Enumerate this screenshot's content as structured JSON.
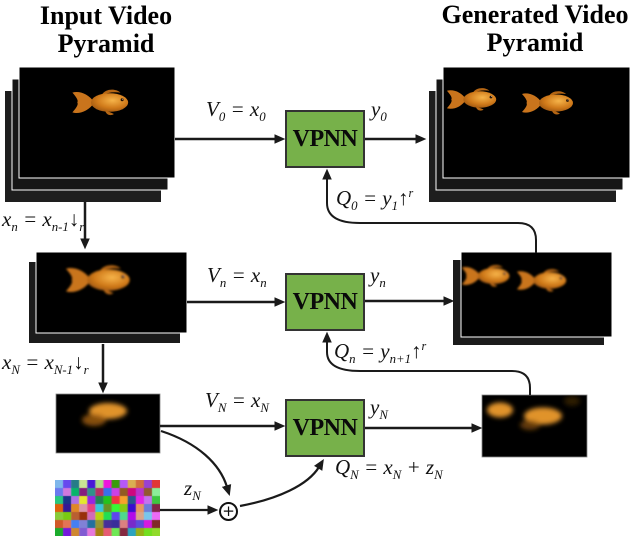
{
  "diagram": {
    "left_title": "Input Video Pyramid",
    "right_title": "Generated Video Pyramid",
    "vpnn_label": "VPNN",
    "plus_symbol": "+",
    "levels": {
      "level_0": {
        "input_label": "V_{0} = x_{0}",
        "output_label": "y_{0}",
        "feedback_label": "Q_{0} = y_{1}↑^{r}"
      },
      "level_n": {
        "downsample_label": "x_{n} = x_{n-1}↓_{r}",
        "input_label": "V_{n} = x_{n}",
        "output_label": "y_{n}",
        "feedback_label": "Q_{n} = y_{n+1}↑^{r}"
      },
      "level_N": {
        "downsample_label": "x_{N} = x_{N-1}↓_{r}",
        "input_label": "V_{N} = x_{N}",
        "output_label": "y_{N}",
        "feedback_label": "Q_{N} = x_{N} + z_{N}",
        "noise_label": "z_{N}"
      }
    },
    "colors": {
      "vpnn_fill": "#77b14a",
      "vpnn_border": "#333333",
      "arrow": "#1a1a1a",
      "frame": "#000000",
      "frame_stack": "#1e1e1e",
      "background": "#ffffff"
    }
  }
}
